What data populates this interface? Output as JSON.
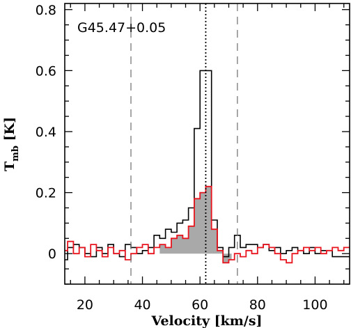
{
  "chart_data": {
    "type": "line",
    "title": "",
    "annotation": "G45.47+0.05",
    "xlabel": "Velocity [km/s]",
    "ylabel_main": "T",
    "ylabel_sub": "mb",
    "ylabel_unit": " [K]",
    "xlim": [
      13,
      112
    ],
    "ylim": [
      -0.1,
      0.82
    ],
    "xticks": [
      20,
      40,
      60,
      80,
      100
    ],
    "xtick_labels": [
      "20",
      "40",
      "60",
      "80",
      "100"
    ],
    "yticks": [
      0,
      0.2,
      0.4,
      0.6,
      0.8
    ],
    "ytick_labels": [
      "0",
      "0.2",
      "0.4",
      "0.6",
      "0.8"
    ],
    "grid": false,
    "legend": "none",
    "vlines": [
      {
        "x": 36,
        "style": "dashed"
      },
      {
        "x": 62,
        "style": "dotted"
      },
      {
        "x": 73,
        "style": "dashed"
      }
    ],
    "series": [
      {
        "color": "#000000",
        "step": true,
        "x": [
          13,
          15,
          17,
          19,
          21,
          23,
          25,
          27,
          29,
          31,
          33,
          35,
          37,
          39,
          41,
          43,
          45,
          47,
          49,
          51,
          53,
          55,
          57,
          59,
          61,
          63,
          65,
          67,
          69,
          71,
          73,
          75,
          77,
          79,
          81,
          83,
          85,
          87,
          89,
          91,
          93,
          95,
          97,
          99,
          101,
          103,
          105,
          107,
          109,
          111
        ],
        "y": [
          -0.02,
          0.02,
          0.03,
          0.02,
          0.0,
          -0.01,
          0.02,
          0.0,
          0.03,
          0.0,
          -0.01,
          0.03,
          0.02,
          0.0,
          0.01,
          0.02,
          0.06,
          0.05,
          0.08,
          0.07,
          0.1,
          0.11,
          0.15,
          0.41,
          0.6,
          0.6,
          0.11,
          0.02,
          -0.01,
          0.02,
          0.06,
          0.02,
          0.03,
          0.03,
          0.02,
          0.03,
          0.01,
          0.02,
          0.0,
          0.01,
          0.02,
          0.01,
          0.0,
          0.02,
          0.0,
          0.01,
          0.01,
          -0.01,
          -0.01,
          -0.01
        ]
      },
      {
        "color": "#e8141e",
        "step": true,
        "x": [
          13,
          15,
          17,
          19,
          21,
          23,
          25,
          27,
          29,
          31,
          33,
          35,
          37,
          39,
          41,
          43,
          45,
          47,
          49,
          51,
          53,
          55,
          57,
          59,
          61,
          63,
          65,
          67,
          69,
          71,
          73,
          75,
          77,
          79,
          81,
          83,
          85,
          87,
          89,
          91,
          93,
          95,
          97,
          99,
          101,
          103,
          105,
          107,
          109,
          111
        ],
        "y": [
          0.01,
          0.04,
          0.0,
          0.02,
          -0.01,
          0.03,
          0.01,
          -0.01,
          0.02,
          0.0,
          0.01,
          -0.02,
          0.0,
          0.02,
          0.03,
          0.0,
          0.02,
          0.03,
          0.02,
          0.05,
          0.06,
          0.05,
          0.09,
          0.18,
          0.2,
          0.22,
          0.08,
          0.01,
          -0.03,
          -0.02,
          0.0,
          -0.01,
          0.01,
          0.0,
          0.02,
          0.03,
          0.02,
          0.0,
          -0.02,
          -0.03,
          0.0,
          0.01,
          0.02,
          0.01,
          0.02,
          0.0,
          0.01,
          0.02,
          0.01,
          0.02
        ]
      }
    ]
  }
}
